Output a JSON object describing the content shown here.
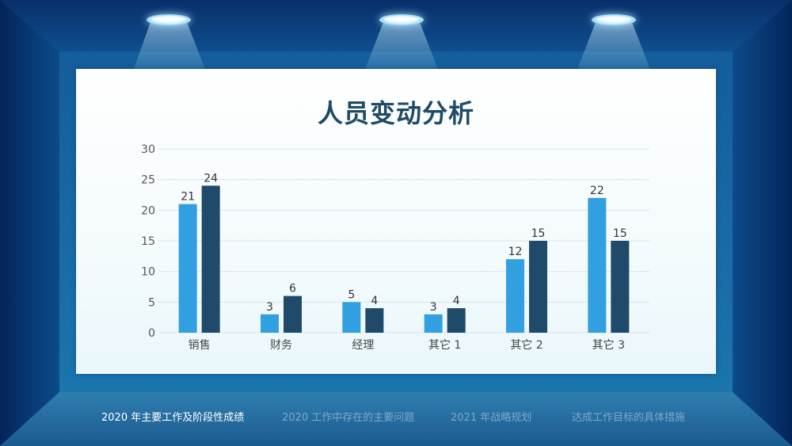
{
  "nav": {
    "items": [
      {
        "label": "2020 年主要工作及阶段性成绩",
        "active": true
      },
      {
        "label": "2020 工作中存在的主要问题",
        "active": false
      },
      {
        "label": "2021 年战略规划",
        "active": false
      },
      {
        "label": "达成工作目标的具体措施",
        "active": false
      }
    ]
  },
  "colors": {
    "series_a": "#32a0e0",
    "series_b": "#1f4a6a",
    "grid": "#d9e4ea",
    "title": "#1d4a66"
  },
  "chart_data": {
    "type": "bar",
    "title": "人员变动分析",
    "xlabel": "",
    "ylabel": "",
    "ylim": [
      0,
      30
    ],
    "yticks": [
      0,
      5,
      10,
      15,
      20,
      25,
      30
    ],
    "grid": true,
    "legend": "none",
    "categories": [
      "销售",
      "财务",
      "经理",
      "其它 1",
      "其它 2",
      "其它 3"
    ],
    "series": [
      {
        "values": [
          21,
          3,
          5,
          3,
          12,
          22
        ]
      },
      {
        "values": [
          24,
          6,
          4,
          4,
          15,
          15
        ]
      }
    ]
  }
}
